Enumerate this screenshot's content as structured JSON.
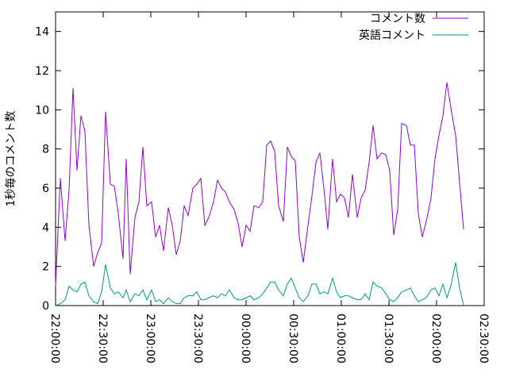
{
  "chart_data": {
    "type": "line",
    "ylabel": "1秒毎のコメント数",
    "x": [
      0,
      3,
      6,
      8.5,
      11,
      13.5,
      16,
      18.5,
      21,
      24,
      26.5,
      29,
      31.5,
      34.5,
      37,
      39.5,
      42.5,
      44.5,
      47,
      50,
      52.5,
      55,
      57.5,
      60.5,
      63,
      65.5,
      68,
      71,
      73.5,
      76,
      78.5,
      81,
      83.5,
      86.5,
      89,
      91.5,
      94,
      96.5,
      99.5,
      102,
      104.5,
      107,
      109.5,
      112.5,
      115,
      117.5,
      120,
      122.5,
      125,
      128,
      130.5,
      133,
      135.5,
      138,
      140.5,
      143.5,
      146,
      148.5,
      151,
      153.5,
      156,
      159,
      161.5,
      164,
      166.5,
      169,
      171.5,
      174.5,
      177,
      179.5,
      182,
      184.5,
      187,
      190,
      192.5,
      195,
      197.5,
      200,
      202.5,
      205.5,
      208,
      210.5,
      213,
      215.5,
      218,
      221,
      223.5,
      226,
      228.5,
      231,
      233.5,
      236.5,
      239,
      241.5,
      244,
      246.5,
      249,
      252,
      254.5,
      257
    ],
    "series": [
      {
        "name": "コメント数",
        "color": "#9400d3",
        "values": [
          1.0,
          6.5,
          3.3,
          5.9,
          11.1,
          6.9,
          9.7,
          8.9,
          4.1,
          2.0,
          2.7,
          3.2,
          9.9,
          6.2,
          6.1,
          4.7,
          2.4,
          7.5,
          1.6,
          4.5,
          5.3,
          8.1,
          5.1,
          5.3,
          3.5,
          4.1,
          2.8,
          5.0,
          4.1,
          2.6,
          3.3,
          5.1,
          4.6,
          6.0,
          6.2,
          6.5,
          4.1,
          4.5,
          5.3,
          6.4,
          6.0,
          5.8,
          5.3,
          4.9,
          4.2,
          3.0,
          4.1,
          3.8,
          5.1,
          5.0,
          5.3,
          8.2,
          8.4,
          7.9,
          5.1,
          4.3,
          8.1,
          7.6,
          7.4,
          3.5,
          2.2,
          4.1,
          5.6,
          7.3,
          7.8,
          6.0,
          3.9,
          7.5,
          5.3,
          5.7,
          5.5,
          4.5,
          6.7,
          4.5,
          5.5,
          5.9,
          7.3,
          9.2,
          7.5,
          7.8,
          7.7,
          6.9,
          3.6,
          4.9,
          9.3,
          9.2,
          8.2,
          8.2,
          4.7,
          3.5,
          4.3,
          5.5,
          7.5,
          8.7,
          9.7,
          11.4,
          10.1,
          8.7,
          6.3,
          3.9
        ]
      },
      {
        "name": "英語コメント",
        "color": "#009e73",
        "values": [
          0,
          0.1,
          0.3,
          1.0,
          0.8,
          0.7,
          1.1,
          1.2,
          0.5,
          0.2,
          0.1,
          0.7,
          2.1,
          0.9,
          0.6,
          0.7,
          0.4,
          0.8,
          0.2,
          0.6,
          0.5,
          0.8,
          0.3,
          0.8,
          0.2,
          0.3,
          0.1,
          0.4,
          0.2,
          0.1,
          0.1,
          0.4,
          0.5,
          0.5,
          0.7,
          0.3,
          0.3,
          0.4,
          0.5,
          0.4,
          0.6,
          0.5,
          0.8,
          0.4,
          0.3,
          0.3,
          0.4,
          0.5,
          0.3,
          0.4,
          0.6,
          0.9,
          1.2,
          1.2,
          0.8,
          0.5,
          1.1,
          1.4,
          0.9,
          0.4,
          0.2,
          0.5,
          1.1,
          1.1,
          0.6,
          0.7,
          0.6,
          1.4,
          0.7,
          0.4,
          0.5,
          0.5,
          0.4,
          0.3,
          0.3,
          0.6,
          0.3,
          1.2,
          1.0,
          0.9,
          0.6,
          0.3,
          0.2,
          0.4,
          0.7,
          0.8,
          0.9,
          0.5,
          0.2,
          0.3,
          0.4,
          0.8,
          0.9,
          0.5,
          1.1,
          0.4,
          1.0,
          2.2,
          0.9,
          0
        ]
      }
    ],
    "xlim": [
      0,
      270
    ],
    "xticks": [
      {
        "value": 0,
        "label": "22:00:00"
      },
      {
        "value": 30,
        "label": "22:30:00"
      },
      {
        "value": 60,
        "label": "23:00:00"
      },
      {
        "value": 90,
        "label": "23:30:00"
      },
      {
        "value": 120,
        "label": "00:00:00"
      },
      {
        "value": 150,
        "label": "00:30:00"
      },
      {
        "value": 180,
        "label": "01:00:00"
      },
      {
        "value": 210,
        "label": "01:30:00"
      },
      {
        "value": 240,
        "label": "02:00:00"
      },
      {
        "value": 270,
        "label": "02:30:00"
      }
    ],
    "ylim": [
      0,
      15
    ],
    "yticks": [
      0,
      2,
      4,
      6,
      8,
      10,
      12,
      14
    ],
    "grid": false,
    "legend": "top-right"
  }
}
